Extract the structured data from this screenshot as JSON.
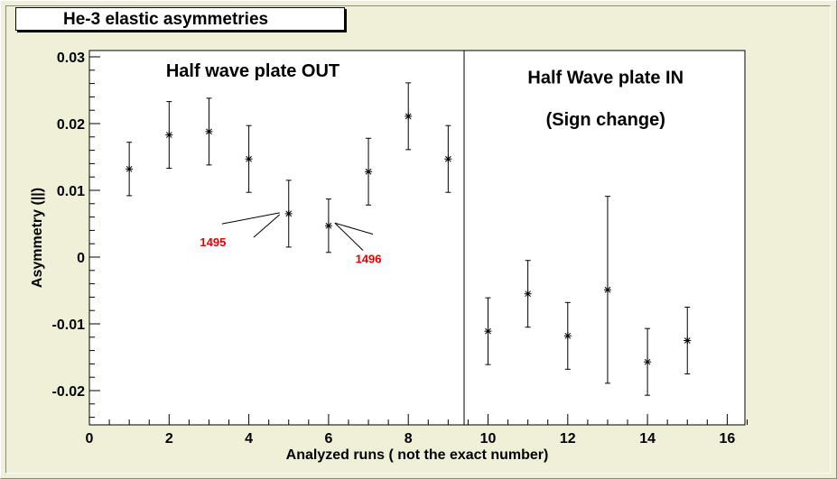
{
  "canvas": {
    "title": "He-3 elastic asymmetries"
  },
  "chart_data": {
    "type": "scatter",
    "title": "He-3 elastic asymmetries",
    "xlabel": "Analyzed runs ( not the exact number)",
    "ylabel": "Asymmetry (||)",
    "xlim": [
      0,
      16.5
    ],
    "ylim": [
      -0.025,
      0.031
    ],
    "x_ticks": [
      0,
      2,
      4,
      6,
      8,
      10,
      12,
      14,
      16
    ],
    "x_tick_labels": [
      "0",
      "2",
      "4",
      "6",
      "8",
      "10",
      "12",
      "14",
      "16"
    ],
    "y_ticks": [
      -0.02,
      -0.01,
      0,
      0.01,
      0.02,
      0.03
    ],
    "y_tick_labels": [
      "-0.02",
      "-0.01",
      "0",
      "0.01",
      "0.02",
      "0.03"
    ],
    "grid": false,
    "divider_x": 9.4,
    "marker": "asterisk",
    "series": [
      {
        "points": [
          {
            "x": 1,
            "y": 0.0132,
            "err": 0.004
          },
          {
            "x": 2,
            "y": 0.0183,
            "err": 0.005
          },
          {
            "x": 3,
            "y": 0.0188,
            "err": 0.005
          },
          {
            "x": 4,
            "y": 0.0147,
            "err": 0.005
          },
          {
            "x": 5,
            "y": 0.0065,
            "err": 0.005
          },
          {
            "x": 6,
            "y": 0.0047,
            "err": 0.004
          },
          {
            "x": 7,
            "y": 0.0128,
            "err": 0.005
          },
          {
            "x": 8,
            "y": 0.0211,
            "err": 0.005
          },
          {
            "x": 9,
            "y": 0.0147,
            "err": 0.005
          },
          {
            "x": 10,
            "y": -0.0111,
            "err": 0.005
          },
          {
            "x": 11,
            "y": -0.0055,
            "err": 0.005
          },
          {
            "x": 12,
            "y": -0.0118,
            "err": 0.005
          },
          {
            "x": 13,
            "y": -0.0049,
            "err": 0.014
          },
          {
            "x": 14,
            "y": -0.0157,
            "err": 0.005
          },
          {
            "x": 15,
            "y": -0.0125,
            "err": 0.005
          }
        ]
      }
    ],
    "annotations": [
      {
        "text": "Half wave plate OUT",
        "x": 4.1,
        "y": 0.027
      },
      {
        "text": "Half Wave plate IN",
        "x": 12.95,
        "y": 0.026
      },
      {
        "text": "(Sign change)",
        "x": 12.95,
        "y": 0.0197
      }
    ],
    "run_labels": [
      {
        "text": "1495",
        "color": "#e00000",
        "x": 3.1,
        "y": 0.0016,
        "points_to": {
          "x": 5,
          "y": 0.0065
        }
      },
      {
        "text": "1496",
        "color": "#e00000",
        "x": 7.0,
        "y": -0.0009,
        "points_to": {
          "x": 6,
          "y": 0.0047
        }
      }
    ]
  }
}
